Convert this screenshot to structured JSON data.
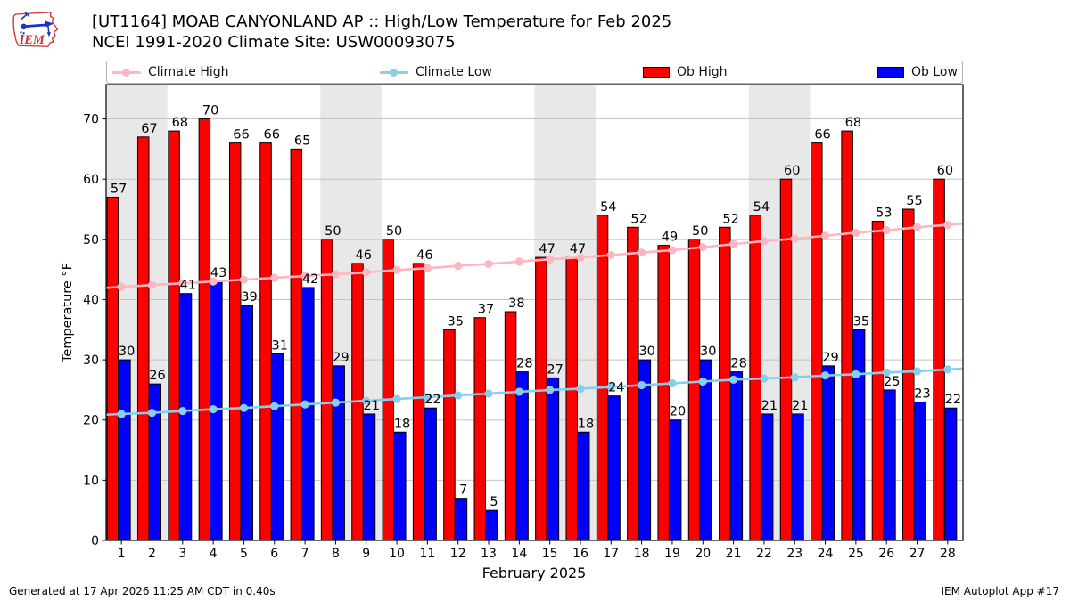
{
  "header": {
    "logo_text": "IEM",
    "title_line1": "[UT1164] MOAB CANYONLAND AP :: High/Low Temperature for Feb 2025",
    "title_line2": "NCEI 1991-2020 Climate Site: USW00093075"
  },
  "legend": {
    "items": [
      {
        "label": "Climate High",
        "marker": "line",
        "color": "#ffb6c1"
      },
      {
        "label": "Climate Low",
        "marker": "line",
        "color": "#87ceeb"
      },
      {
        "label": "Ob High",
        "marker": "patch",
        "color": "#ff0000"
      },
      {
        "label": "Ob Low",
        "marker": "patch",
        "color": "#0000ff"
      }
    ]
  },
  "chart_data": {
    "type": "bar",
    "title": "[UT1164] MOAB CANYONLAND AP :: High/Low Temperature for Feb 2025",
    "subtitle": "NCEI 1991-2020 Climate Site: USW00093075",
    "xlabel": "February 2025",
    "ylabel": "Temperature °F",
    "x": [
      1,
      2,
      3,
      4,
      5,
      6,
      7,
      8,
      9,
      10,
      11,
      12,
      13,
      14,
      15,
      16,
      17,
      18,
      19,
      20,
      21,
      22,
      23,
      24,
      25,
      26,
      27,
      28
    ],
    "series": [
      {
        "name": "Climate High",
        "type": "line",
        "color": "#ffb6c1",
        "values": [
          42.1,
          42.4,
          42.7,
          43.0,
          43.3,
          43.6,
          43.9,
          44.2,
          44.5,
          44.9,
          45.2,
          45.6,
          45.9,
          46.3,
          46.7,
          47.0,
          47.4,
          47.8,
          48.2,
          48.7,
          49.2,
          49.7,
          50.1,
          50.6,
          51.1,
          51.5,
          52.0,
          52.4
        ]
      },
      {
        "name": "Climate Low",
        "type": "line",
        "color": "#87ceeb",
        "values": [
          21.0,
          21.2,
          21.5,
          21.8,
          22.0,
          22.3,
          22.6,
          22.9,
          23.2,
          23.5,
          23.8,
          24.1,
          24.4,
          24.7,
          25.0,
          25.2,
          25.5,
          25.8,
          26.1,
          26.4,
          26.7,
          26.9,
          27.1,
          27.4,
          27.6,
          27.9,
          28.1,
          28.4
        ]
      },
      {
        "name": "Ob High",
        "type": "bar",
        "color": "#ff0000",
        "labeled": true,
        "values": [
          57,
          67,
          68,
          70,
          66,
          66,
          65,
          50,
          46,
          50,
          46,
          35,
          37,
          38,
          47,
          47,
          54,
          52,
          49,
          50,
          52,
          54,
          60,
          66,
          68,
          53,
          55,
          60
        ]
      },
      {
        "name": "Ob Low",
        "type": "bar",
        "color": "#0000ff",
        "labeled": true,
        "values": [
          30,
          26,
          41,
          43,
          39,
          31,
          42,
          29,
          21,
          18,
          22,
          7,
          5,
          28,
          27,
          18,
          24,
          30,
          20,
          30,
          28,
          21,
          21,
          29,
          35,
          25,
          23,
          22
        ]
      }
    ],
    "ylim": [
      0,
      75.7
    ],
    "yticks": [
      0,
      10,
      20,
      30,
      40,
      50,
      60,
      70
    ],
    "grid": "horizontal",
    "grid_color": "#c4c4c4",
    "weekend_bands": [
      [
        1,
        2
      ],
      [
        8,
        9
      ],
      [
        15,
        16
      ],
      [
        22,
        23
      ]
    ],
    "band_color": "#e8e8e8",
    "legend_position": "top"
  },
  "footer": {
    "left": "Generated at 17 Apr 2026 11:25 AM CDT in 0.40s",
    "right": "IEM Autoplot App #17"
  }
}
